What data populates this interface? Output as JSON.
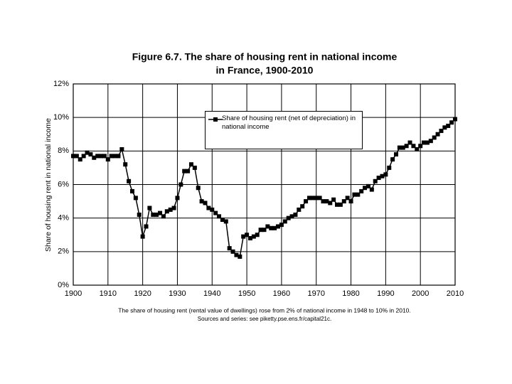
{
  "chart_data": {
    "type": "line",
    "title": [
      "Figure 6.7. The share of housing rent in national income",
      "in France, 1900-2010"
    ],
    "y_label": "Share of housing rent in national income",
    "notes": [
      "The share of housing rent (rental value of dwellings) rose from 2% of national income in 1948 to 10% in 2010.",
      "Sources and series: see piketty.pse.ens.fr/capital21c."
    ],
    "x": [
      1900,
      1901,
      1902,
      1903,
      1904,
      1905,
      1906,
      1907,
      1908,
      1909,
      1910,
      1911,
      1912,
      1913,
      1914,
      1915,
      1916,
      1917,
      1918,
      1919,
      1920,
      1921,
      1922,
      1923,
      1924,
      1925,
      1926,
      1927,
      1928,
      1929,
      1930,
      1931,
      1932,
      1933,
      1934,
      1935,
      1936,
      1937,
      1938,
      1939,
      1940,
      1941,
      1942,
      1943,
      1944,
      1945,
      1946,
      1947,
      1948,
      1949,
      1950,
      1951,
      1952,
      1953,
      1954,
      1955,
      1956,
      1957,
      1958,
      1959,
      1960,
      1961,
      1962,
      1963,
      1964,
      1965,
      1966,
      1967,
      1968,
      1969,
      1970,
      1971,
      1972,
      1973,
      1974,
      1975,
      1976,
      1977,
      1978,
      1979,
      1980,
      1981,
      1982,
      1983,
      1984,
      1985,
      1986,
      1987,
      1988,
      1989,
      1990,
      1991,
      1992,
      1993,
      1994,
      1995,
      1996,
      1997,
      1998,
      1999,
      2000,
      2001,
      2002,
      2003,
      2004,
      2005,
      2006,
      2007,
      2008,
      2009,
      2010
    ],
    "series": [
      {
        "name": "Share of housing rent (net of depreciation) in national income",
        "color": "#000000",
        "values": [
          7.7,
          7.7,
          7.5,
          7.7,
          7.9,
          7.8,
          7.6,
          7.7,
          7.7,
          7.7,
          7.5,
          7.7,
          7.7,
          7.7,
          8.1,
          7.2,
          6.2,
          5.6,
          5.2,
          4.2,
          2.9,
          3.5,
          4.6,
          4.2,
          4.2,
          4.3,
          4.1,
          4.4,
          4.5,
          4.6,
          5.2,
          6.0,
          6.8,
          6.8,
          7.2,
          7.0,
          5.8,
          5.0,
          4.9,
          4.6,
          4.5,
          4.3,
          4.1,
          3.9,
          3.8,
          2.2,
          2.0,
          1.8,
          1.7,
          2.9,
          3.0,
          2.8,
          2.9,
          3.0,
          3.3,
          3.3,
          3.5,
          3.4,
          3.4,
          3.5,
          3.6,
          3.8,
          4.0,
          4.1,
          4.2,
          4.5,
          4.7,
          5.0,
          5.2,
          5.2,
          5.2,
          5.2,
          5.0,
          5.0,
          4.9,
          5.1,
          4.8,
          4.8,
          5.0,
          5.2,
          5.0,
          5.4,
          5.4,
          5.6,
          5.8,
          5.9,
          5.7,
          6.2,
          6.4,
          6.5,
          6.6,
          7.0,
          7.5,
          7.8,
          8.2,
          8.2,
          8.3,
          8.5,
          8.3,
          8.1,
          8.3,
          8.5,
          8.5,
          8.6,
          8.8,
          9.0,
          9.2,
          9.4,
          9.5,
          9.7,
          9.9
        ]
      }
    ],
    "xlim": [
      1900,
      2010
    ],
    "xticks": [
      1900,
      1910,
      1920,
      1930,
      1940,
      1950,
      1960,
      1970,
      1980,
      1990,
      2000,
      2010
    ],
    "ylim": [
      0,
      12
    ],
    "yticks": [
      {
        "value": 0,
        "label": "0%"
      },
      {
        "value": 2,
        "label": "2%"
      },
      {
        "value": 4,
        "label": "4%"
      },
      {
        "value": 6,
        "label": "6%"
      },
      {
        "value": 8,
        "label": "8%"
      },
      {
        "value": 10,
        "label": "10%"
      },
      {
        "value": 12,
        "label": "12%"
      }
    ],
    "grid": true,
    "legend": "top-center"
  }
}
